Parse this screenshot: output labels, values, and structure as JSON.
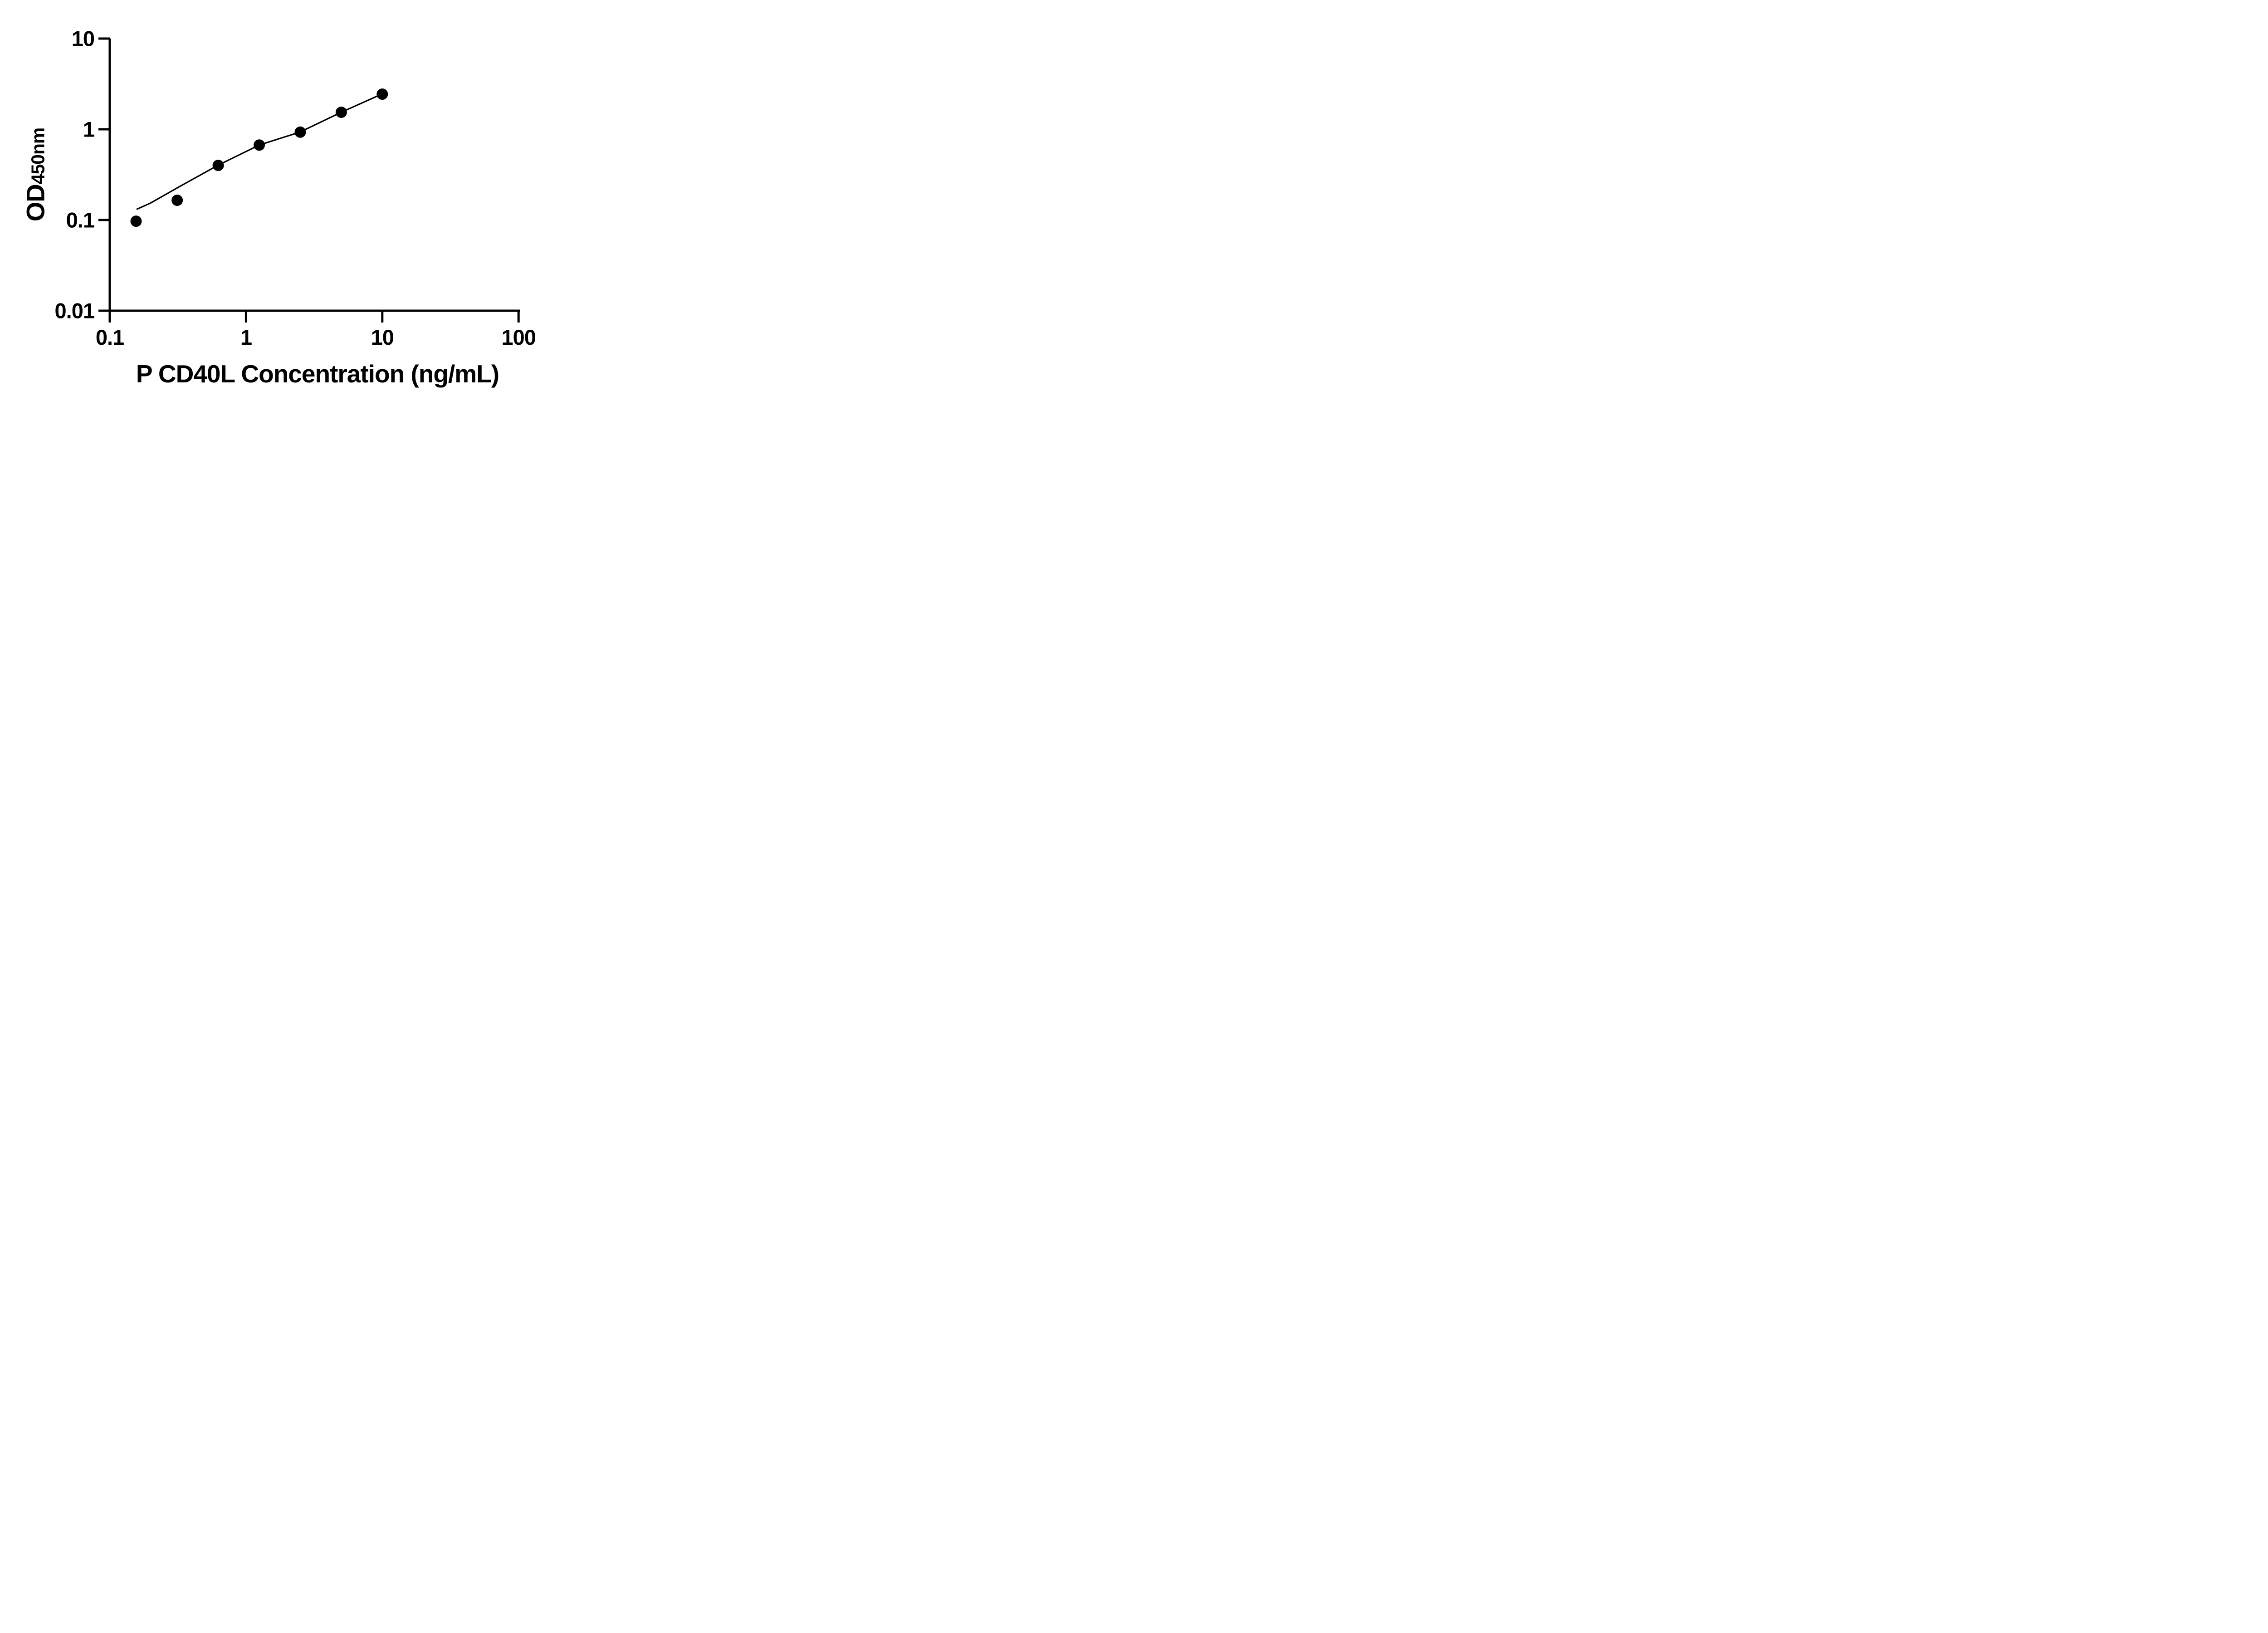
{
  "chart_data": {
    "type": "scatter",
    "title": "",
    "xlabel": "P CD40L Concentration (ng/mL)",
    "ylabel_main": "OD",
    "ylabel_sub": "450nm",
    "x_scale": "log",
    "y_scale": "log",
    "xlim": [
      0.1,
      100
    ],
    "ylim": [
      0.01,
      10
    ],
    "x_tick_values": [
      0.1,
      1,
      10,
      100
    ],
    "x_tick_labels": [
      "0.1",
      "1",
      "10",
      "100"
    ],
    "y_tick_values": [
      0.01,
      0.1,
      1,
      10
    ],
    "y_tick_labels": [
      "0.01",
      "0.1",
      "1",
      "10"
    ],
    "grid": false,
    "legend": false,
    "series": [
      {
        "name": "fit-line",
        "type": "line",
        "color": "#000000",
        "x": [
          0.157,
          0.198,
          0.316,
          0.62,
          1.25,
          2.48,
          5.0,
          9.9
        ],
        "y": [
          0.131,
          0.153,
          0.228,
          0.4,
          0.67,
          0.93,
          1.54,
          2.44
        ]
      },
      {
        "name": "standard-points",
        "type": "scatter",
        "marker": "circle",
        "color": "#000000",
        "x": [
          0.156,
          0.3125,
          0.625,
          1.25,
          2.5,
          5,
          10
        ],
        "y": [
          0.097,
          0.165,
          0.4,
          0.67,
          0.93,
          1.54,
          2.44
        ]
      }
    ]
  },
  "colors": {
    "background": "#ffffff",
    "axis": "#000000",
    "text": "#000000"
  }
}
